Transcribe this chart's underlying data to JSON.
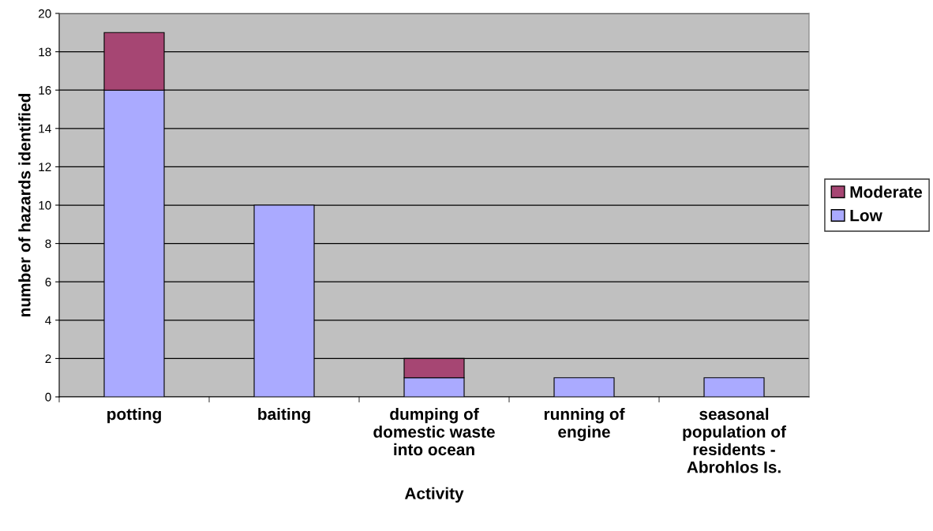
{
  "chart_data": {
    "type": "bar",
    "stacked": true,
    "xlabel": "Activity",
    "ylabel": "number of hazards identified",
    "categories": [
      "potting",
      "baiting",
      "dumping of\ndomestic waste\ninto ocean",
      "running of\nengine",
      "seasonal\npopulation of\nresidents -\nAbrohlos Is."
    ],
    "series": [
      {
        "name": "Low",
        "color": "#aaaaff",
        "values": [
          16,
          10,
          1,
          1,
          1
        ]
      },
      {
        "name": "Moderate",
        "color": "#a64673",
        "values": [
          3,
          null,
          1,
          null,
          null
        ]
      }
    ],
    "ylim": [
      0,
      20
    ],
    "yticks": [
      0,
      2,
      4,
      6,
      8,
      10,
      12,
      14,
      16,
      18,
      20
    ],
    "grid": "y",
    "legend": "right"
  }
}
